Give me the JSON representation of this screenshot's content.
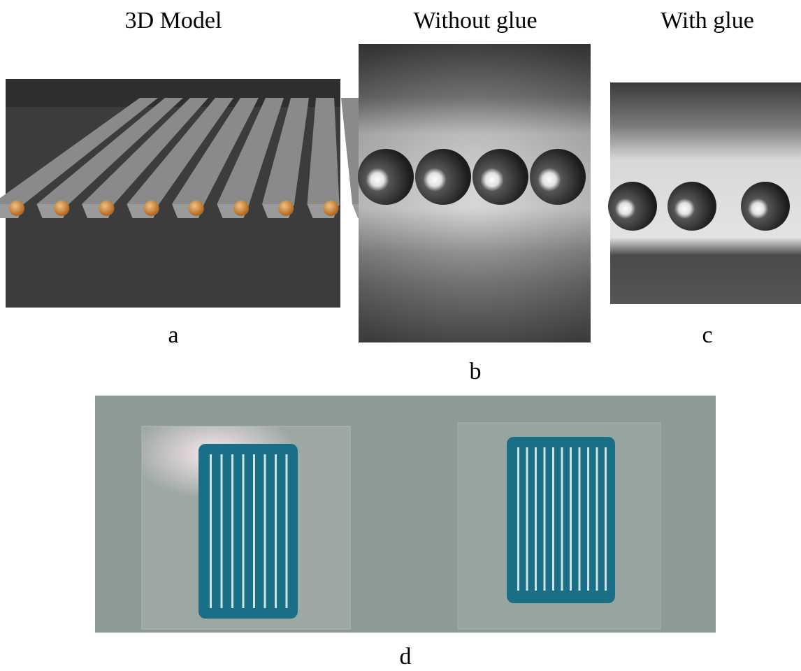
{
  "figure": {
    "panels": [
      {
        "title": "3D Model",
        "label": "a"
      },
      {
        "title": "Without glue",
        "label": "b"
      },
      {
        "title": "With glue",
        "label": "c"
      },
      {
        "label": "d"
      }
    ]
  }
}
